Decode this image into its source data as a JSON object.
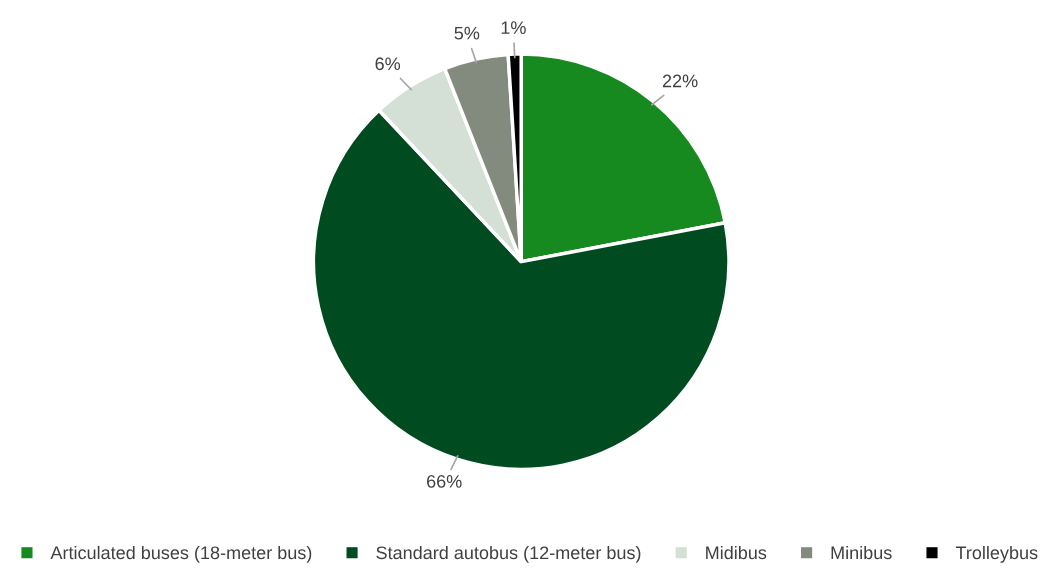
{
  "chart_data": {
    "type": "pie",
    "categories": [
      "Articulated buses (18-meter bus)",
      "Standard autobus (12-meter bus)",
      "Midibus",
      "Minibus",
      "Trolleybus"
    ],
    "values": [
      22,
      66,
      6,
      5,
      1
    ],
    "colors": [
      "#16891f",
      "#004b20",
      "#d4e0d5",
      "#838a7e",
      "#000000"
    ],
    "value_labels": [
      "22%",
      "66%",
      "6%",
      "5%",
      "1%"
    ],
    "legend": "bottom"
  }
}
